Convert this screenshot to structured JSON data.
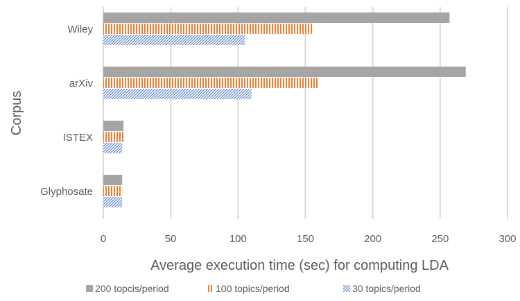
{
  "chart_data": {
    "type": "bar",
    "orientation": "horizontal",
    "categories": [
      "Wiley",
      "arXiv",
      "ISTEX",
      "Glyphosate"
    ],
    "series": [
      {
        "name": "200 topcis/period",
        "values": [
          257,
          269,
          15,
          14
        ],
        "color": "#a5a5a5",
        "pattern": "solid"
      },
      {
        "name": "100 topics/period",
        "values": [
          156,
          159,
          15,
          14
        ],
        "color": "#ed7d31",
        "pattern": "vertical-stripes"
      },
      {
        "name": "30 topics/period",
        "values": [
          105,
          110,
          14,
          14
        ],
        "color": "#4472c4",
        "pattern": "diagonal-hatch"
      }
    ],
    "xlabel": "Average execution time (sec) for computing LDA",
    "ylabel": "Corpus",
    "xlim": [
      0,
      300
    ],
    "xticks": [
      0,
      50,
      100,
      150,
      200,
      250,
      300
    ],
    "grid": "vertical",
    "legend_position": "bottom"
  }
}
